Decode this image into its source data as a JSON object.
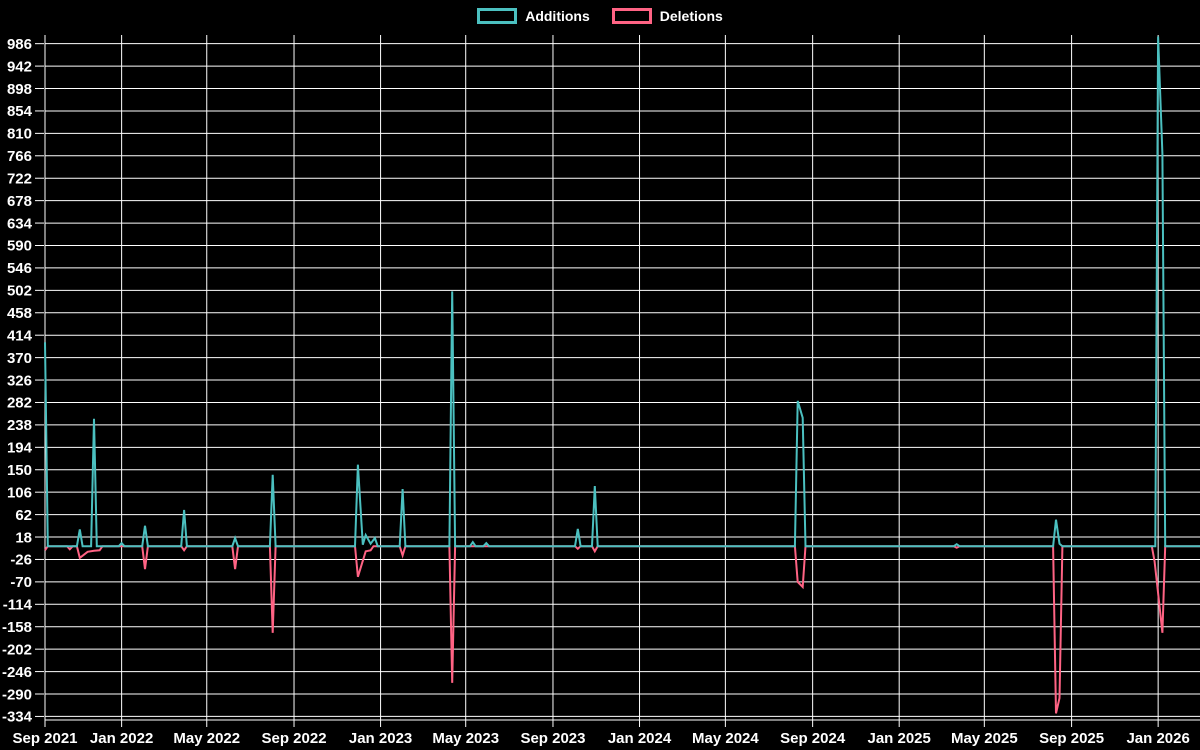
{
  "page": {
    "background": "#000000",
    "text_color": "#ffffff"
  },
  "chart_data": {
    "type": "line",
    "title": "",
    "note": "weekly git additions/deletions spark chart; series value is 0 between listed spike points",
    "background": "#000000",
    "grid": true,
    "grid_color": "#ffffff",
    "axis_text_color": "#ffffff",
    "legend_position": "top-center",
    "legend": [
      {
        "label": "Additions",
        "color": "#4bc0c0"
      },
      {
        "label": "Deletions",
        "color": "#ff6384"
      }
    ],
    "x_axis": {
      "type": "time",
      "start": "2021-09-15",
      "end": "2026-03-01",
      "ticks": [
        {
          "label": "Sep 2021",
          "date": "2021-09-15"
        },
        {
          "label": "Jan 2022",
          "date": "2022-01-01"
        },
        {
          "label": "May 2022",
          "date": "2022-05-01"
        },
        {
          "label": "Sep 2022",
          "date": "2022-09-01"
        },
        {
          "label": "Jan 2023",
          "date": "2023-01-01"
        },
        {
          "label": "May 2023",
          "date": "2023-05-01"
        },
        {
          "label": "Sep 2023",
          "date": "2023-09-01"
        },
        {
          "label": "Jan 2024",
          "date": "2024-01-01"
        },
        {
          "label": "May 2024",
          "date": "2024-05-01"
        },
        {
          "label": "Sep 2024",
          "date": "2024-09-01"
        },
        {
          "label": "Jan 2025",
          "date": "2025-01-01"
        },
        {
          "label": "May 2025",
          "date": "2025-05-01"
        },
        {
          "label": "Sep 2025",
          "date": "2025-09-01"
        },
        {
          "label": "Jan 2026",
          "date": "2026-01-01"
        }
      ]
    },
    "y_axis": {
      "min": -341,
      "max": 1003,
      "tick_step": 44,
      "tick_values": [
        986,
        942,
        898,
        854,
        810,
        766,
        722,
        678,
        634,
        590,
        546,
        502,
        458,
        414,
        370,
        326,
        282,
        238,
        194,
        150,
        106,
        62,
        18,
        -26,
        -70,
        -114,
        -158,
        -202,
        -246,
        -290,
        -334
      ]
    },
    "series": [
      {
        "name": "Additions",
        "color": "#4bc0c0",
        "points": [
          [
            "2021-09-15",
            400
          ],
          [
            "2021-11-03",
            33
          ],
          [
            "2021-11-23",
            250
          ],
          [
            "2022-01-01",
            6
          ],
          [
            "2022-02-03",
            40
          ],
          [
            "2022-03-30",
            71
          ],
          [
            "2022-06-10",
            16
          ],
          [
            "2022-08-02",
            140
          ],
          [
            "2022-11-30",
            160
          ],
          [
            "2022-12-07",
            3
          ],
          [
            "2022-12-11",
            22
          ],
          [
            "2022-12-18",
            5
          ],
          [
            "2022-12-24",
            16
          ],
          [
            "2023-02-01",
            112
          ],
          [
            "2023-04-12",
            500
          ],
          [
            "2023-05-11",
            8
          ],
          [
            "2023-05-30",
            6
          ],
          [
            "2023-10-06",
            34
          ],
          [
            "2023-10-30",
            118
          ],
          [
            "2024-08-11",
            285
          ],
          [
            "2024-08-18",
            252
          ],
          [
            "2025-03-23",
            4
          ],
          [
            "2025-08-10",
            52
          ],
          [
            "2025-08-15",
            5
          ],
          [
            "2026-01-01",
            1000
          ],
          [
            "2026-01-07",
            770
          ]
        ]
      },
      {
        "name": "Deletions",
        "color": "#ff6384",
        "points": [
          [
            "2021-09-15",
            -8
          ],
          [
            "2021-10-20",
            -6
          ],
          [
            "2021-11-03",
            -23
          ],
          [
            "2021-11-14",
            -11
          ],
          [
            "2021-11-23",
            -9
          ],
          [
            "2021-12-01",
            -8
          ],
          [
            "2022-02-03",
            -45
          ],
          [
            "2022-03-30",
            -8
          ],
          [
            "2022-06-10",
            -45
          ],
          [
            "2022-08-02",
            -170
          ],
          [
            "2022-11-30",
            -60
          ],
          [
            "2022-12-11",
            -10
          ],
          [
            "2022-12-18",
            -8
          ],
          [
            "2023-02-01",
            -18
          ],
          [
            "2023-04-12",
            -268
          ],
          [
            "2023-10-06",
            -5
          ],
          [
            "2023-10-30",
            -10
          ],
          [
            "2024-08-11",
            -70
          ],
          [
            "2024-08-18",
            -80
          ],
          [
            "2025-03-23",
            -3
          ],
          [
            "2025-08-10",
            -328
          ],
          [
            "2025-08-15",
            -298
          ],
          [
            "2025-12-27",
            -30
          ],
          [
            "2026-01-01",
            -92
          ],
          [
            "2026-01-07",
            -170
          ]
        ]
      }
    ]
  }
}
